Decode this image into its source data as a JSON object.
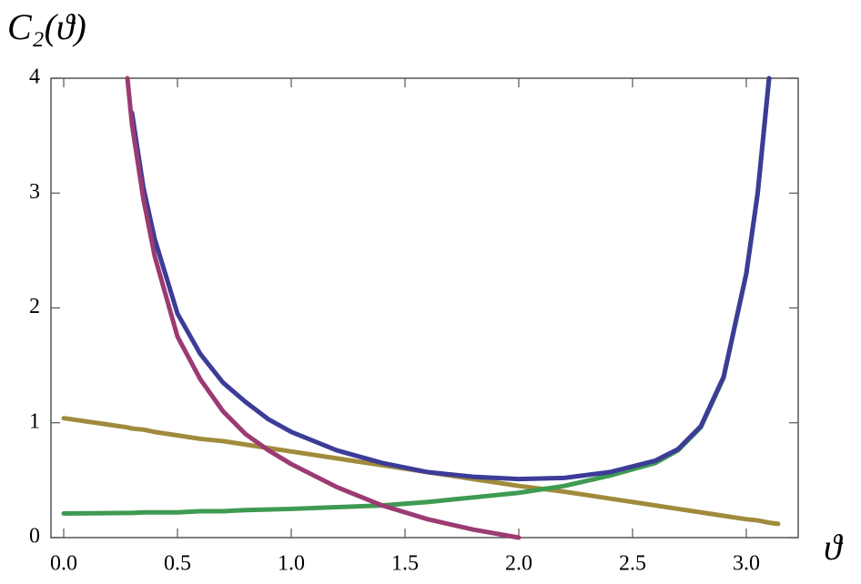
{
  "chart_data": {
    "type": "line",
    "ylabel": "C₂(ϑ)",
    "xlabel": "ϑ",
    "x": [
      0,
      0.28,
      0.3,
      0.35,
      0.4,
      0.5,
      0.6,
      0.7,
      0.8,
      0.9,
      1.0,
      1.2,
      1.4,
      1.6,
      1.8,
      2.0,
      2.2,
      2.4,
      2.6,
      2.7,
      2.8,
      2.9,
      3.0,
      3.05,
      3.1,
      3.14
    ],
    "series": [
      {
        "color": "#a08a3c",
        "values": [
          1.04,
          0.96,
          0.95,
          0.94,
          0.92,
          0.89,
          0.86,
          0.84,
          0.81,
          0.78,
          0.75,
          0.69,
          0.63,
          0.57,
          0.51,
          0.45,
          0.4,
          0.34,
          0.28,
          0.25,
          0.22,
          0.19,
          0.16,
          0.15,
          0.13,
          0.12
        ]
      },
      {
        "color": "#3f9a52",
        "values": [
          0.21,
          0.215,
          0.215,
          0.22,
          0.22,
          0.22,
          0.23,
          0.23,
          0.24,
          0.245,
          0.25,
          0.265,
          0.28,
          0.31,
          0.35,
          0.39,
          0.45,
          0.54,
          0.65,
          0.76,
          0.96,
          1.39,
          2.3,
          3.0,
          4.0,
          null
        ]
      },
      {
        "color": "#3c3c98",
        "values": [
          null,
          null,
          3.7,
          3.05,
          2.6,
          1.95,
          1.6,
          1.35,
          1.18,
          1.03,
          0.92,
          0.76,
          0.65,
          0.57,
          0.53,
          0.51,
          0.52,
          0.57,
          0.67,
          0.77,
          0.97,
          1.4,
          2.3,
          3.0,
          4.0,
          null
        ]
      },
      {
        "color": "#9b3b72",
        "values": [
          null,
          4.0,
          3.6,
          2.95,
          2.45,
          1.75,
          1.38,
          1.1,
          0.9,
          0.76,
          0.64,
          0.44,
          0.28,
          0.16,
          0.07,
          0.0,
          null,
          null,
          null,
          null,
          null,
          null,
          null,
          null,
          null,
          null
        ]
      }
    ],
    "xlim": [
      -0.056,
      3.228
    ],
    "ylim": [
      0,
      4
    ],
    "xticks": [
      {
        "value": 0,
        "label": "0.0"
      },
      0.5,
      {
        "value": 1,
        "label": "1.0"
      },
      1.5,
      {
        "value": 2,
        "label": "2.0"
      },
      2.5,
      {
        "value": 3,
        "label": "3.0"
      }
    ],
    "yticks": [
      0,
      1,
      2,
      3,
      4
    ]
  }
}
